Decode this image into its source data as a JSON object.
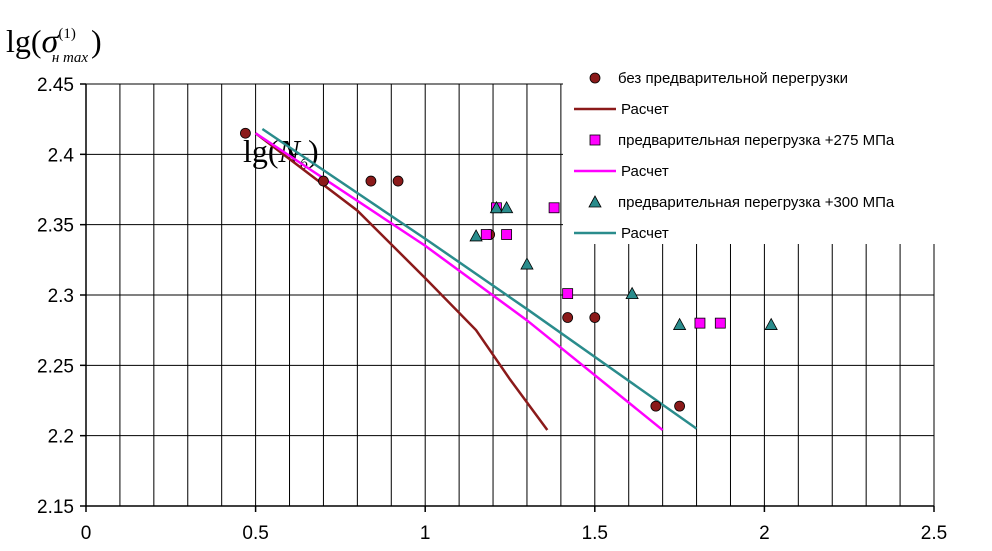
{
  "chart_data": {
    "type": "scatter",
    "ylabel_math": {
      "base": "lg(",
      "sigma": "σ",
      "sup": "(1)",
      "sub": "н max",
      "close": ")"
    },
    "annotation_math": {
      "base": "lg(",
      "letter": "N",
      "sub": "б",
      "close": ")"
    },
    "xlim": [
      0,
      2.5
    ],
    "ylim": [
      2.15,
      2.45
    ],
    "xticks": [
      0,
      0.5,
      1,
      1.5,
      2,
      2.5
    ],
    "xtick_labels": [
      "0",
      "0.5",
      "1",
      "1.5",
      "2",
      "2.5"
    ],
    "yticks": [
      2.15,
      2.2,
      2.25,
      2.3,
      2.35,
      2.4,
      2.45
    ],
    "ytick_labels": [
      "2.15",
      "2.2",
      "2.25",
      "2.3",
      "2.35",
      "2.4",
      "2.45"
    ],
    "grid": {
      "vertical_step": 0.1,
      "horizontal_step": 0.05
    },
    "legend_placement": "top-right",
    "series": [
      {
        "name": "без предварительной перегрузки",
        "kind": "points",
        "marker": "circle",
        "color": "#8B1A1A",
        "points": [
          [
            0.47,
            2.415
          ],
          [
            0.7,
            2.381
          ],
          [
            0.84,
            2.381
          ],
          [
            0.92,
            2.381
          ],
          [
            1.19,
            2.343
          ],
          [
            1.42,
            2.284
          ],
          [
            1.5,
            2.284
          ],
          [
            1.68,
            2.221
          ],
          [
            1.75,
            2.221
          ]
        ]
      },
      {
        "name": "Расчет",
        "kind": "line",
        "color": "#8B1A1A",
        "points": [
          [
            0.5,
            2.415
          ],
          [
            0.8,
            2.36
          ],
          [
            1.0,
            2.312
          ],
          [
            1.15,
            2.275
          ],
          [
            1.25,
            2.24
          ],
          [
            1.36,
            2.204
          ]
        ]
      },
      {
        "name": "предварительная перегрузка +275 МПа",
        "kind": "points",
        "marker": "square",
        "color": "#FF00FF",
        "points": [
          [
            1.18,
            2.343
          ],
          [
            1.21,
            2.362
          ],
          [
            1.24,
            2.343
          ],
          [
            1.38,
            2.362
          ],
          [
            1.42,
            2.301
          ],
          [
            1.81,
            2.28
          ],
          [
            1.87,
            2.28
          ]
        ]
      },
      {
        "name": "Расчет",
        "kind": "line",
        "color": "#FF00FF",
        "points": [
          [
            0.5,
            2.415
          ],
          [
            1.0,
            2.335
          ],
          [
            1.3,
            2.282
          ],
          [
            1.7,
            2.204
          ]
        ]
      },
      {
        "name": "предварительная перегрузка +300 МПа",
        "kind": "points",
        "marker": "triangle",
        "color": "#2A8C8C",
        "points": [
          [
            1.15,
            2.342
          ],
          [
            1.21,
            2.362
          ],
          [
            1.24,
            2.362
          ],
          [
            1.3,
            2.322
          ],
          [
            1.61,
            2.301
          ],
          [
            1.75,
            2.279
          ],
          [
            2.02,
            2.279
          ]
        ]
      },
      {
        "name": "Расчет",
        "kind": "line",
        "color": "#2A8C8C",
        "points": [
          [
            0.52,
            2.418
          ],
          [
            1.0,
            2.34
          ],
          [
            1.3,
            2.29
          ],
          [
            1.8,
            2.205
          ]
        ]
      }
    ]
  }
}
